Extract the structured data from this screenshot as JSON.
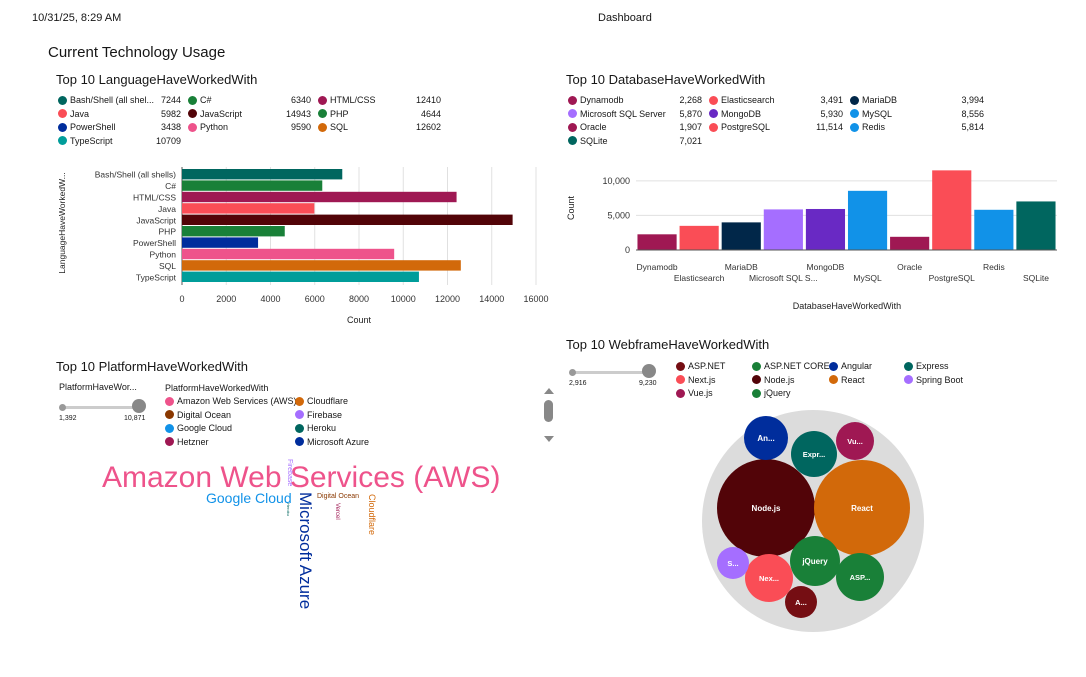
{
  "header": {
    "datetime": "10/31/25, 8:29 AM",
    "title": "Dashboard"
  },
  "section_title": "Current Technology Usage",
  "colors": {
    "teal": "#00665f",
    "green": "#198038",
    "magenta": "#9f1853",
    "coral": "#fa4d56",
    "maroon": "#520408",
    "blue": "#002d9c",
    "pink": "#ee538b",
    "orange": "#d2690a",
    "cyan": "#1192e8",
    "purple": "#a56eff",
    "violet": "#6929c4",
    "red": "#ff4d5a",
    "navy": "#012749"
  },
  "language": {
    "title": "Top 10 LanguageHaveWorkedWith",
    "legend": [
      {
        "label": "Bash/Shell (all shel...",
        "value": "7244",
        "color": "#00665f"
      },
      {
        "label": "Java",
        "value": "5982",
        "color": "#fa4d56"
      },
      {
        "label": "PowerShell",
        "value": "3438",
        "color": "#002d9c"
      },
      {
        "label": "TypeScript",
        "value": "10709",
        "color": "#009d9a"
      },
      {
        "label": "C#",
        "value": "6340",
        "color": "#198038"
      },
      {
        "label": "JavaScript",
        "value": "14943",
        "color": "#520408"
      },
      {
        "label": "Python",
        "value": "9590",
        "color": "#ee538b"
      },
      {
        "label": "HTML/CSS",
        "value": "12410",
        "color": "#9f1853"
      },
      {
        "label": "PHP",
        "value": "4644",
        "color": "#198038"
      },
      {
        "label": "SQL",
        "value": "12602",
        "color": "#d2690a"
      }
    ],
    "ylabel": "LanguageHaveWorkedW...",
    "xlabel": "Count"
  },
  "database": {
    "title": "Top 10 DatabaseHaveWorkedWith",
    "legend": [
      {
        "label": "Dynamodb",
        "value": "2,268",
        "color": "#9f1853"
      },
      {
        "label": "Microsoft SQL Server",
        "value": "5,870",
        "color": "#a56eff"
      },
      {
        "label": "Oracle",
        "value": "1,907",
        "color": "#9f1853"
      },
      {
        "label": "SQLite",
        "value": "7,021",
        "color": "#00665f"
      },
      {
        "label": "Elasticsearch",
        "value": "3,491",
        "color": "#fa4d56"
      },
      {
        "label": "MongoDB",
        "value": "5,930",
        "color": "#6929c4"
      },
      {
        "label": "PostgreSQL",
        "value": "11,514",
        "color": "#fa4d56"
      },
      {
        "label": "MariaDB",
        "value": "3,994",
        "color": "#012749"
      },
      {
        "label": "MySQL",
        "value": "8,556",
        "color": "#1192e8"
      },
      {
        "label": "Redis",
        "value": "5,814",
        "color": "#1192e8"
      }
    ],
    "ylabel": "Count",
    "xlabel": "DatabaseHaveWorkedWith"
  },
  "platform": {
    "title": "Top 10 PlatformHaveWorkedWith",
    "slider_title": "PlatformHaveWor...",
    "slider_min": "1,392",
    "slider_max": "10,871",
    "legend_title": "PlatformHaveWorkedWith",
    "legend": [
      {
        "label": "Amazon Web Services (AWS)",
        "color": "#ee538b"
      },
      {
        "label": "Digital Ocean",
        "color": "#8a3800"
      },
      {
        "label": "Google Cloud",
        "color": "#1192e8"
      },
      {
        "label": "Hetzner",
        "color": "#9f1853"
      },
      {
        "label": "Cloudflare",
        "color": "#d2690a"
      },
      {
        "label": "Firebase",
        "color": "#a56eff"
      },
      {
        "label": "Heroku",
        "color": "#00665f"
      },
      {
        "label": "Microsoft Azure",
        "color": "#002d9c"
      }
    ],
    "words": {
      "aws": "Amazon Web Services (AWS)",
      "google": "Google Cloud",
      "azure": "Microsoft Azure",
      "firebase": "Firebase",
      "digitalocean": "Digital Ocean",
      "cloudflare": "Cloudflare",
      "vercel": "Vercel",
      "heroku": "Heroku"
    }
  },
  "webframe": {
    "title": "Top 10 WebframeHaveWorkedWith",
    "slider_min": "2,916",
    "slider_max": "9,230",
    "legend": [
      {
        "label": "ASP.NET",
        "color": "#750e13"
      },
      {
        "label": "Next.js",
        "color": "#fa4d56"
      },
      {
        "label": "Vue.js",
        "color": "#9f1853"
      },
      {
        "label": "ASP.NET CORE",
        "color": "#198038"
      },
      {
        "label": "Node.js",
        "color": "#520408"
      },
      {
        "label": "jQuery",
        "color": "#198038"
      },
      {
        "label": "Angular",
        "color": "#002d9c"
      },
      {
        "label": "React",
        "color": "#d2690a"
      },
      {
        "label": "Express",
        "color": "#00665f"
      },
      {
        "label": "Spring Boot",
        "color": "#a56eff"
      }
    ],
    "bubbles": [
      {
        "label": "Node.js",
        "color": "#520408"
      },
      {
        "label": "React",
        "color": "#d2690a"
      },
      {
        "label": "An...",
        "color": "#002d9c"
      },
      {
        "label": "Expr...",
        "color": "#00665f"
      },
      {
        "label": "Vu...",
        "color": "#9f1853"
      },
      {
        "label": "jQuery",
        "color": "#198038"
      },
      {
        "label": "ASP...",
        "color": "#198038"
      },
      {
        "label": "Nex...",
        "color": "#fa4d56"
      },
      {
        "label": "S...",
        "color": "#a56eff"
      },
      {
        "label": "A...",
        "color": "#750e13"
      }
    ]
  },
  "chart_data": [
    {
      "type": "bar",
      "orientation": "horizontal",
      "title": "Top 10 LanguageHaveWorkedWith",
      "categories": [
        "Bash/Shell (all shells)",
        "C#",
        "HTML/CSS",
        "Java",
        "JavaScript",
        "PHP",
        "PowerShell",
        "Python",
        "SQL",
        "TypeScript"
      ],
      "values": [
        7244,
        6340,
        12410,
        5982,
        14943,
        4644,
        3438,
        9590,
        12602,
        10709
      ],
      "colors": [
        "#00665f",
        "#198038",
        "#9f1853",
        "#fa4d56",
        "#520408",
        "#198038",
        "#002d9c",
        "#ee538b",
        "#d2690a",
        "#009d9a"
      ],
      "xlabel": "Count",
      "ylabel": "LanguageHaveWorkedW...",
      "xlim": [
        0,
        16000
      ],
      "xticks": [
        "0",
        "2000",
        "4000",
        "6000",
        "8000",
        "10000",
        "12000",
        "14000",
        "16000"
      ],
      "grid": true
    },
    {
      "type": "bar",
      "title": "Top 10 DatabaseHaveWorkedWith",
      "categories": [
        "Dynamodb",
        "Elasticsearch",
        "MariaDB",
        "Microsoft SQL S...",
        "MongoDB",
        "MySQL",
        "Oracle",
        "PostgreSQL",
        "Redis",
        "SQLite"
      ],
      "values": [
        2268,
        3491,
        3994,
        5870,
        5930,
        8556,
        1907,
        11514,
        5814,
        7021
      ],
      "colors": [
        "#9f1853",
        "#fa4d56",
        "#012749",
        "#a56eff",
        "#6929c4",
        "#1192e8",
        "#9f1853",
        "#fa4d56",
        "#1192e8",
        "#00665f"
      ],
      "xlabel": "DatabaseHaveWorkedWith",
      "ylabel": "Count",
      "ylim": [
        0,
        12000
      ],
      "yticks": [
        "0",
        "5,000",
        "10,000"
      ],
      "grid": true
    }
  ]
}
